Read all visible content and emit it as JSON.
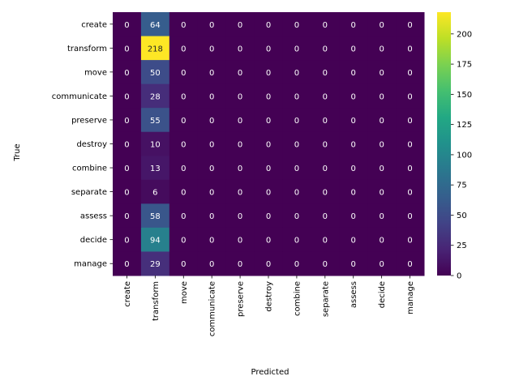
{
  "chart_data": {
    "type": "heatmap",
    "title": "",
    "xlabel": "Predicted",
    "ylabel": "True",
    "row_labels": [
      "create",
      "transform",
      "move",
      "communicate",
      "preserve",
      "destroy",
      "combine",
      "separate",
      "assess",
      "decide",
      "manage"
    ],
    "col_labels": [
      "create",
      "transform",
      "move",
      "communicate",
      "preserve",
      "destroy",
      "combine",
      "separate",
      "assess",
      "decide",
      "manage"
    ],
    "values": [
      [
        0,
        64,
        0,
        0,
        0,
        0,
        0,
        0,
        0,
        0,
        0
      ],
      [
        0,
        218,
        0,
        0,
        0,
        0,
        0,
        0,
        0,
        0,
        0
      ],
      [
        0,
        50,
        0,
        0,
        0,
        0,
        0,
        0,
        0,
        0,
        0
      ],
      [
        0,
        28,
        0,
        0,
        0,
        0,
        0,
        0,
        0,
        0,
        0
      ],
      [
        0,
        55,
        0,
        0,
        0,
        0,
        0,
        0,
        0,
        0,
        0
      ],
      [
        0,
        10,
        0,
        0,
        0,
        0,
        0,
        0,
        0,
        0,
        0
      ],
      [
        0,
        13,
        0,
        0,
        0,
        0,
        0,
        0,
        0,
        0,
        0
      ],
      [
        0,
        6,
        0,
        0,
        0,
        0,
        0,
        0,
        0,
        0,
        0
      ],
      [
        0,
        58,
        0,
        0,
        0,
        0,
        0,
        0,
        0,
        0,
        0
      ],
      [
        0,
        94,
        0,
        0,
        0,
        0,
        0,
        0,
        0,
        0,
        0
      ],
      [
        0,
        29,
        0,
        0,
        0,
        0,
        0,
        0,
        0,
        0,
        0
      ]
    ],
    "annotated": true,
    "colormap": "viridis",
    "colorbar": {
      "range": [
        0,
        218
      ],
      "ticks": [
        0,
        25,
        50,
        75,
        100,
        125,
        150,
        175,
        200
      ]
    },
    "grid": false
  }
}
